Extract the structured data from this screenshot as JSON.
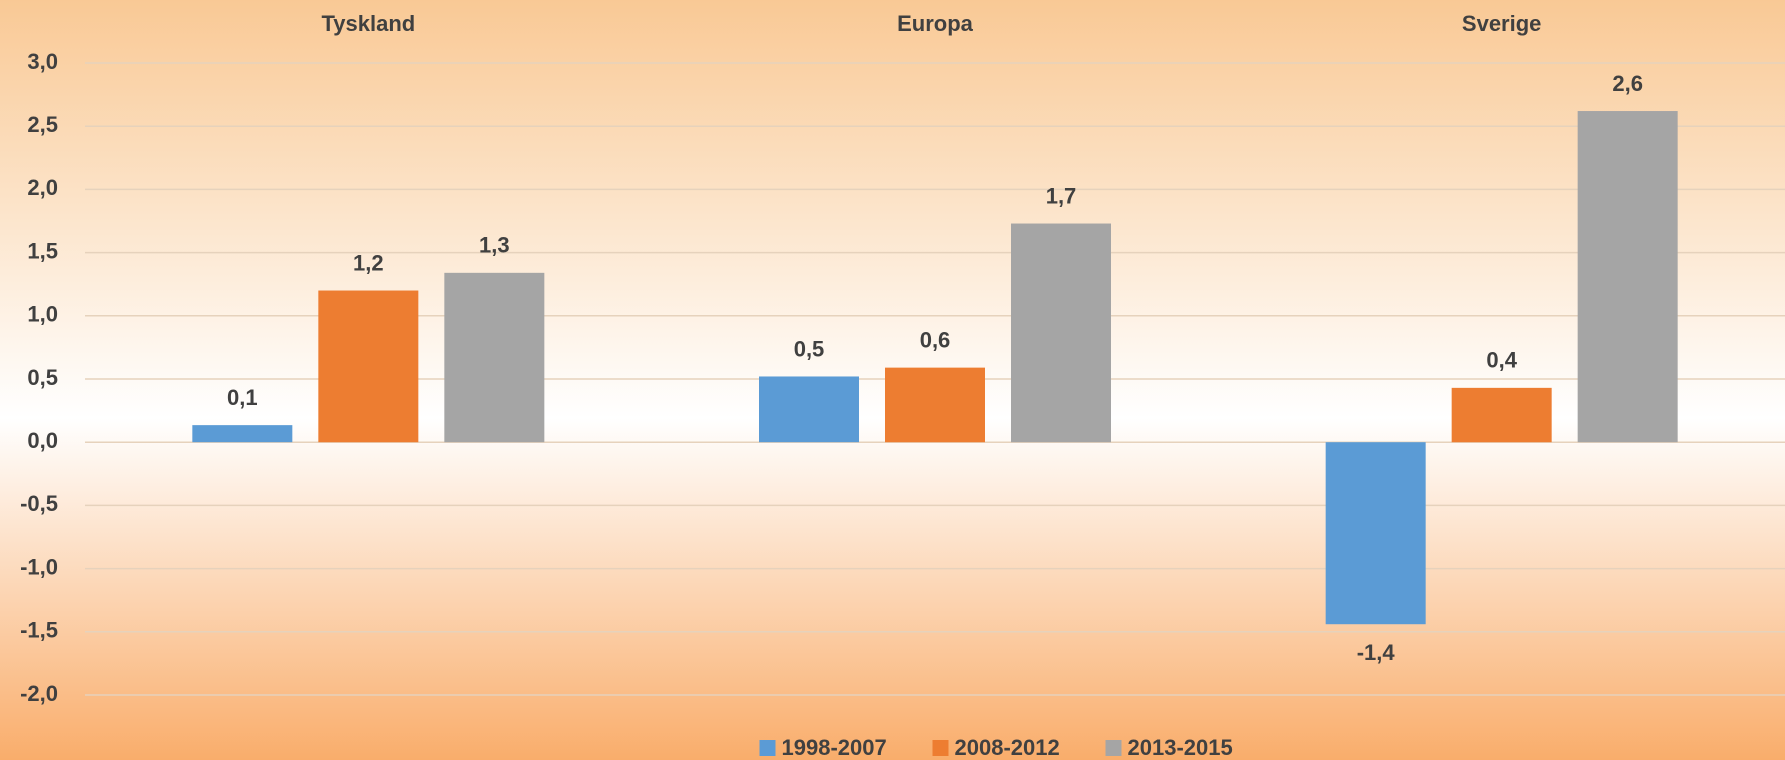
{
  "chart_data": {
    "type": "bar",
    "categories": [
      "Tyskland",
      "Europa",
      "Sverige"
    ],
    "series": [
      {
        "name": "1998-2007",
        "color": "#5b9bd5",
        "values": [
          0.135,
          0.52,
          -1.44
        ],
        "value_labels": [
          "0,1",
          "0,5",
          "-1,4"
        ]
      },
      {
        "name": "2008-2012",
        "color": "#ed7d31",
        "values": [
          1.2,
          0.59,
          0.43
        ],
        "value_labels": [
          "1,2",
          "0,6",
          "0,4"
        ]
      },
      {
        "name": "2013-2015",
        "color": "#a5a5a5",
        "values": [
          1.34,
          1.73,
          2.62
        ],
        "value_labels": [
          "1,3",
          "1,7",
          "2,6"
        ]
      }
    ],
    "ylim": [
      -2,
      3
    ],
    "yticks": [
      {
        "value": -2,
        "label": "-2,0"
      },
      {
        "value": -1.5,
        "label": "-1,5"
      },
      {
        "value": -1,
        "label": "-1,0"
      },
      {
        "value": -0.5,
        "label": "-0,5"
      },
      {
        "value": 0,
        "label": "0,0"
      },
      {
        "value": 0.5,
        "label": "0,5"
      },
      {
        "value": 1,
        "label": "1,0"
      },
      {
        "value": 1.5,
        "label": "1,5"
      },
      {
        "value": 2,
        "label": "2,0"
      },
      {
        "value": 2.5,
        "label": "2,5"
      },
      {
        "value": 3,
        "label": "3,0"
      }
    ],
    "grid": true,
    "legend": "bottom"
  }
}
